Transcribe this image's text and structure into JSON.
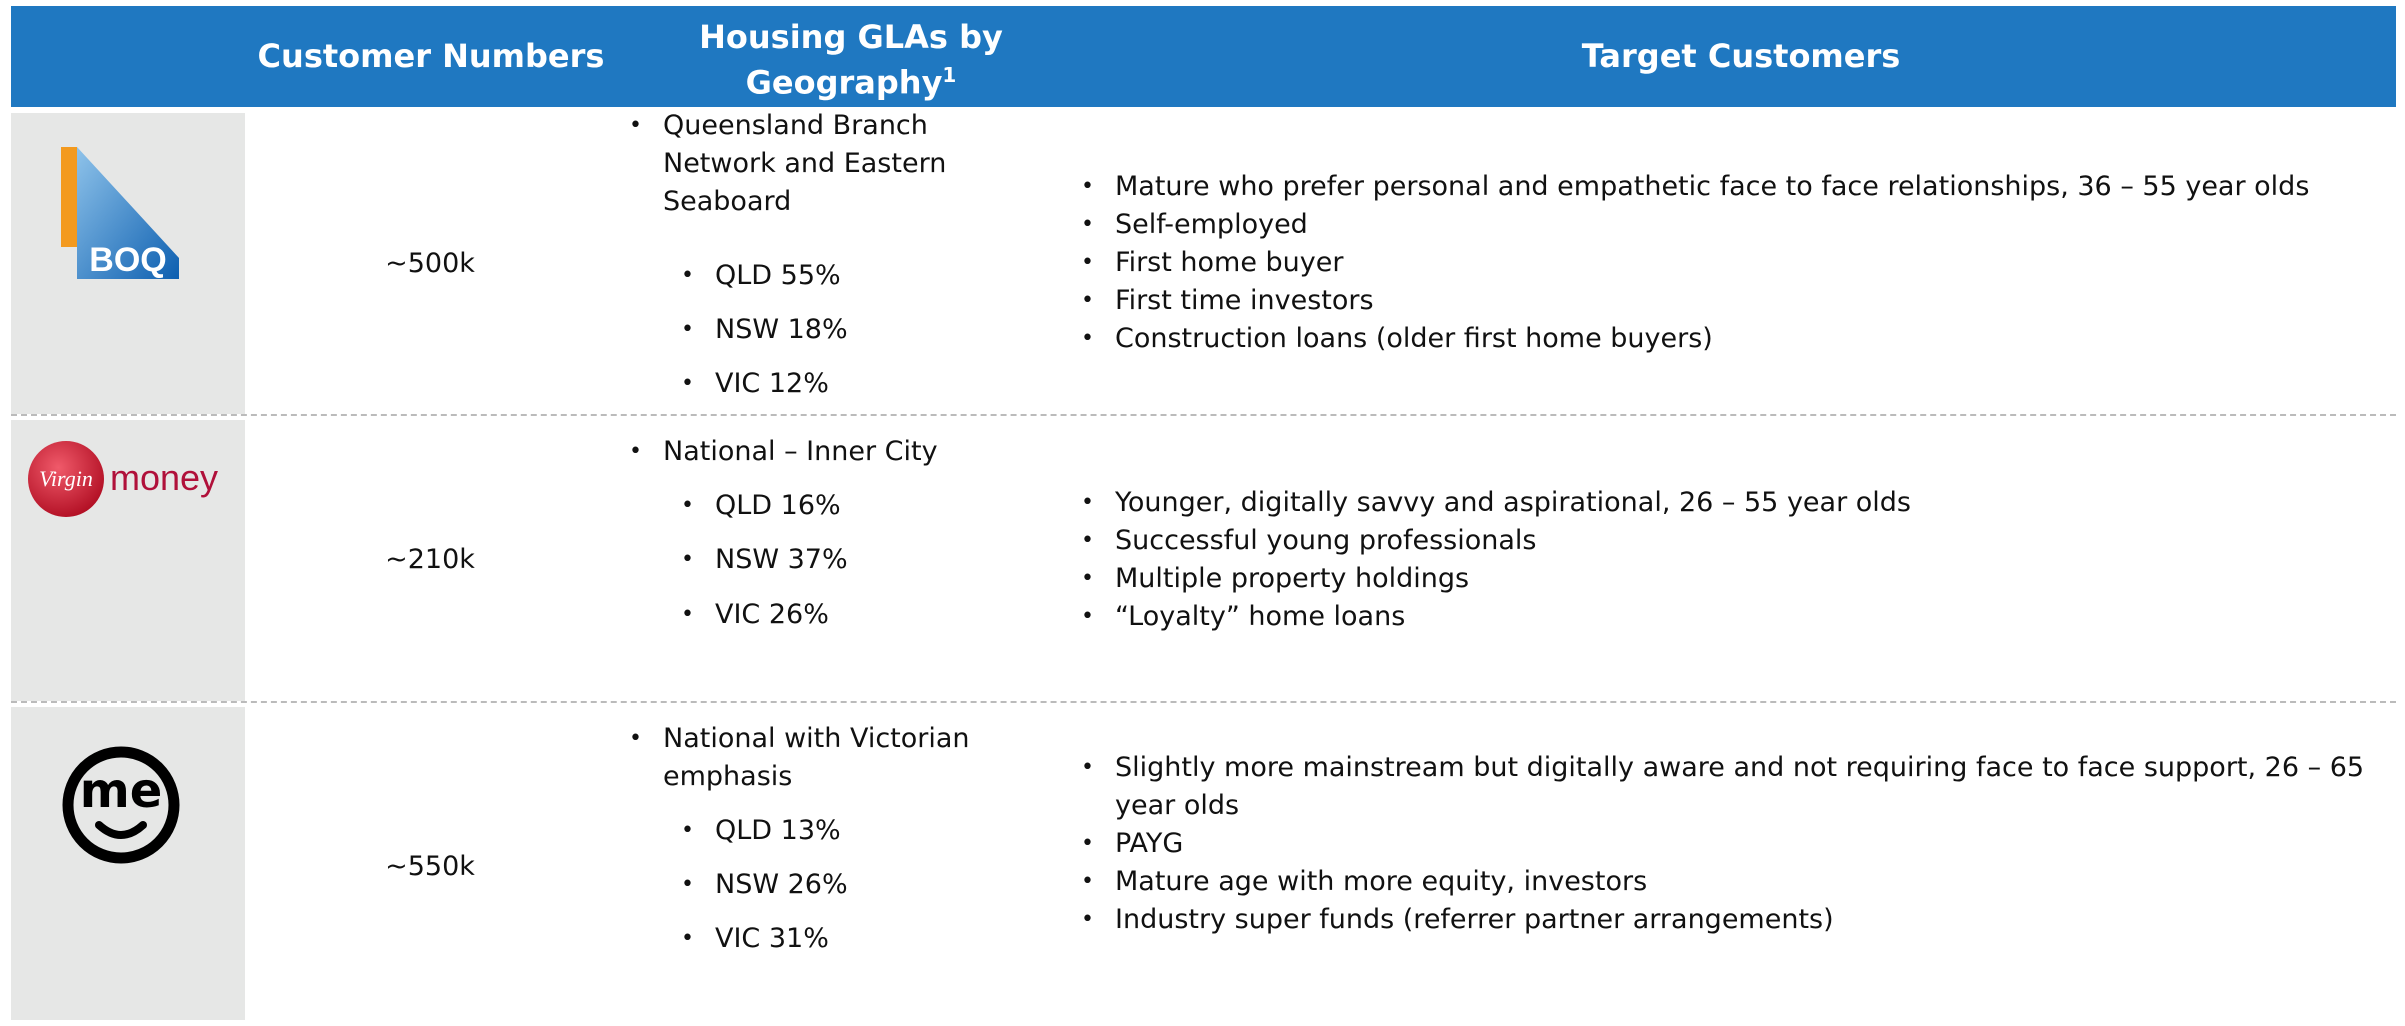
{
  "header": {
    "columns": [
      "Customer Numbers",
      "Housing GLAs by Geography",
      "Target Customers"
    ],
    "footnote_mark": "1"
  },
  "rows": [
    {
      "logo": {
        "text": "BOQ"
      },
      "customers": "~500k",
      "geography": {
        "region": "Queensland Branch Network and Eastern Seaboard",
        "states": [
          "QLD 55%",
          "NSW 18%",
          "VIC 12%"
        ]
      },
      "targets": [
        "Mature who prefer personal and empathetic face to face relationships, 36 – 55 year olds",
        "Self-employed",
        "First home buyer",
        "First time investors",
        "Construction loans (older first home buyers)"
      ]
    },
    {
      "logo": {
        "script": "Virgin",
        "text": "money"
      },
      "customers": "~210k",
      "geography": {
        "region": "National – Inner City",
        "states": [
          "QLD 16%",
          "NSW 37%",
          "VIC 26%"
        ]
      },
      "targets": [
        "Younger, digitally savvy and aspirational, 26 – 55 year olds",
        "Successful young professionals",
        "Multiple property holdings",
        "“Loyalty” home loans"
      ]
    },
    {
      "logo": {
        "text": "me"
      },
      "customers": "~550k",
      "geography": {
        "region": "National with Victorian emphasis",
        "states": [
          "QLD 13%",
          "NSW 26%",
          "VIC 31%"
        ]
      },
      "targets": [
        "Slightly more mainstream but digitally aware and not requiring face to face support, 26 – 65 year olds",
        "PAYG",
        "Mature age with more equity, investors",
        "Industry super funds (referrer partner arrangements)"
      ]
    }
  ]
}
